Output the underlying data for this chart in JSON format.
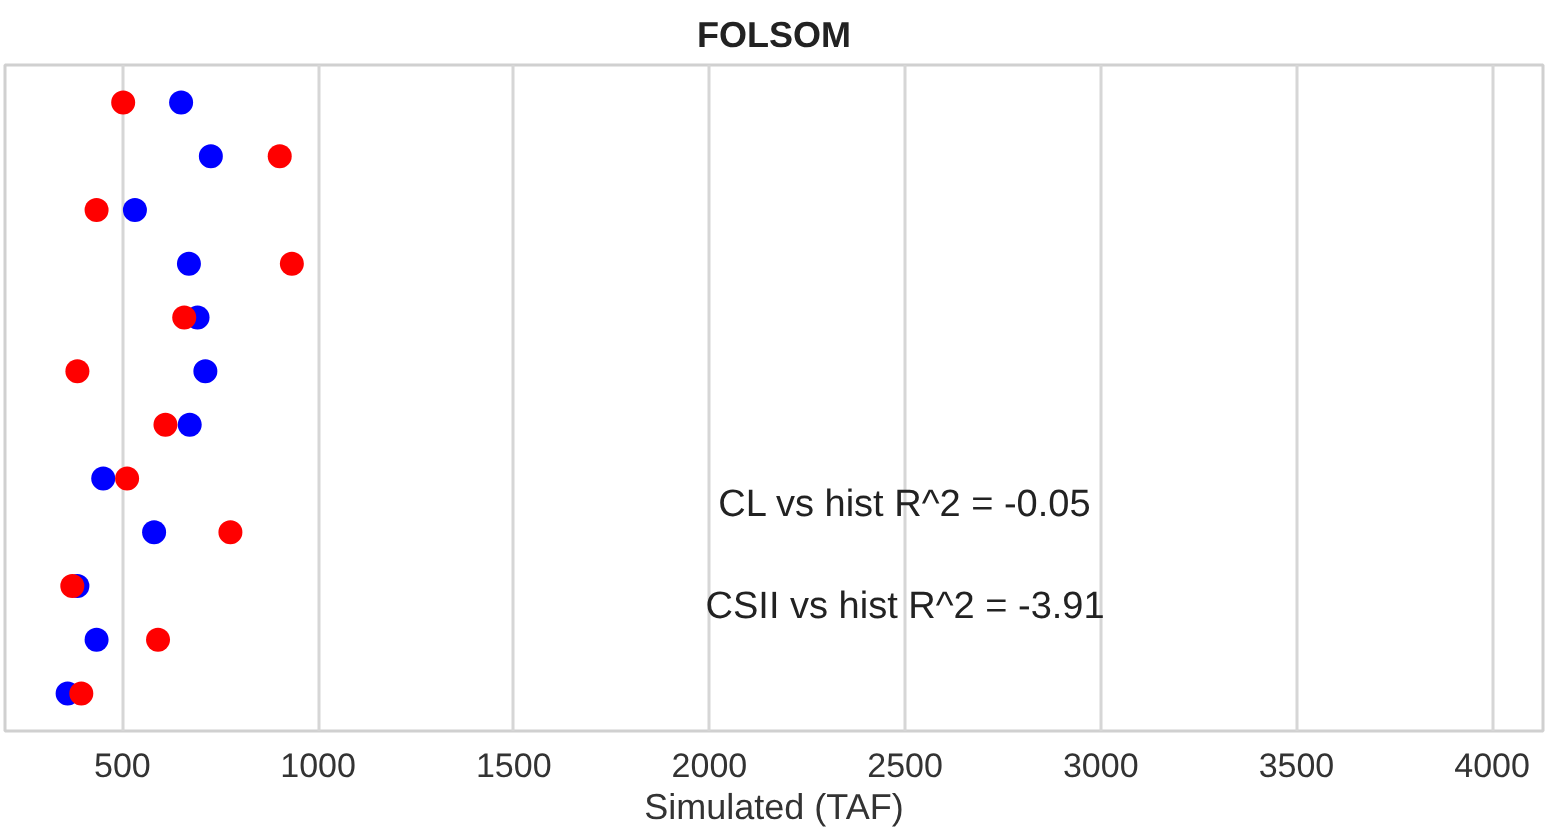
{
  "chart_data": {
    "type": "scatter",
    "title": "FOLSOM",
    "xlabel": "Simulated (TAF)",
    "orientation": "horizontal",
    "categories": [
      null,
      null,
      null,
      null,
      null,
      null,
      null,
      null,
      null,
      null,
      null,
      null
    ],
    "xlim": [
      200,
      4130
    ],
    "xticks": [
      500,
      1000,
      1500,
      2000,
      2500,
      3000,
      3500,
      4000
    ],
    "grid": "x",
    "marker": "circle",
    "series": [
      {
        "color": "#0000ff",
        "values": [
          650,
          726,
          532,
          670,
          692,
          712,
          672,
          451,
          581,
          385,
          434,
          360
        ]
      },
      {
        "color": "#ff0000",
        "values": [
          502,
          902,
          434,
          933,
          658,
          385,
          610,
          512,
          776,
          372,
          591,
          395
        ]
      }
    ],
    "annotations": [
      "CL vs hist R^2 = -0.05",
      "CSII vs hist R^2 = -3.91"
    ]
  }
}
